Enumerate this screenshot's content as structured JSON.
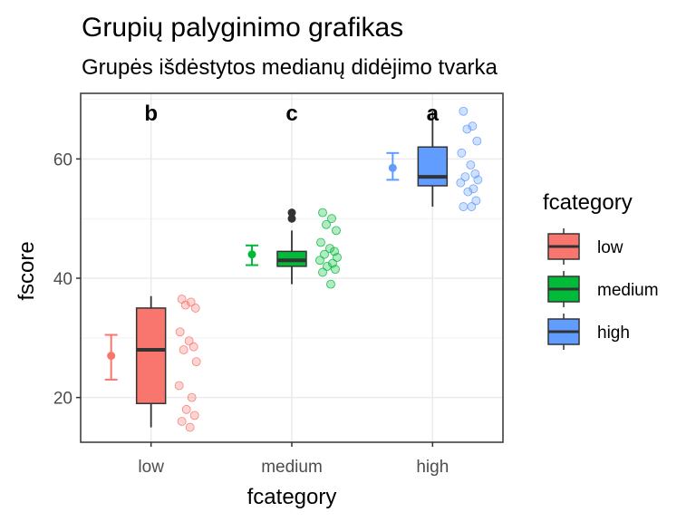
{
  "chart_data": {
    "type": "box",
    "title": "Grupių palyginimo grafikas",
    "subtitle": "Grupės išdėstytos medianų didėjimo tvarka",
    "xlabel": "fcategory",
    "ylabel": "fscore",
    "ylim": [
      12.5,
      71
    ],
    "yticks": [
      20,
      40,
      60
    ],
    "grid": true,
    "legend": {
      "title": "fcategory",
      "position": "right"
    },
    "categories": [
      "low",
      "medium",
      "high"
    ],
    "colors": [
      "#F8766D",
      "#00BA38",
      "#619CFF"
    ],
    "boxes": [
      {
        "category": "low",
        "q1": 19,
        "median": 28,
        "q3": 35,
        "whisker_low": 15,
        "whisker_high": 37,
        "outliers": []
      },
      {
        "category": "medium",
        "q1": 42,
        "median": 43,
        "q3": 44.5,
        "whisker_low": 39,
        "whisker_high": 48,
        "outliers": [
          50,
          51
        ]
      },
      {
        "category": "high",
        "q1": 55.5,
        "median": 57,
        "q3": 62,
        "whisker_low": 52,
        "whisker_high": 68,
        "outliers": []
      }
    ],
    "mean_ci": [
      {
        "category": "low",
        "mean": 27,
        "lower": 23,
        "upper": 30.5
      },
      {
        "category": "medium",
        "mean": 44,
        "lower": 42.2,
        "upper": 45.5
      },
      {
        "category": "high",
        "mean": 58.5,
        "lower": 56.5,
        "upper": 61
      }
    ],
    "points": [
      {
        "category": "low",
        "values": [
          36.5,
          36,
          35.5,
          35,
          31,
          29.5,
          28.5,
          28,
          26,
          22,
          20,
          18,
          17,
          16,
          15
        ]
      },
      {
        "category": "medium",
        "values": [
          51,
          50,
          49,
          48,
          46,
          45,
          44.5,
          44,
          43.5,
          43,
          42.5,
          42,
          41.5,
          41,
          39
        ]
      },
      {
        "category": "high",
        "values": [
          68,
          65.5,
          65,
          63,
          61,
          59,
          57.5,
          57,
          56.5,
          56,
          55,
          54.5,
          53,
          52,
          52
        ]
      }
    ],
    "group_letters": [
      {
        "category": "low",
        "letter": "b"
      },
      {
        "category": "medium",
        "letter": "c"
      },
      {
        "category": "high",
        "letter": "a"
      }
    ]
  }
}
